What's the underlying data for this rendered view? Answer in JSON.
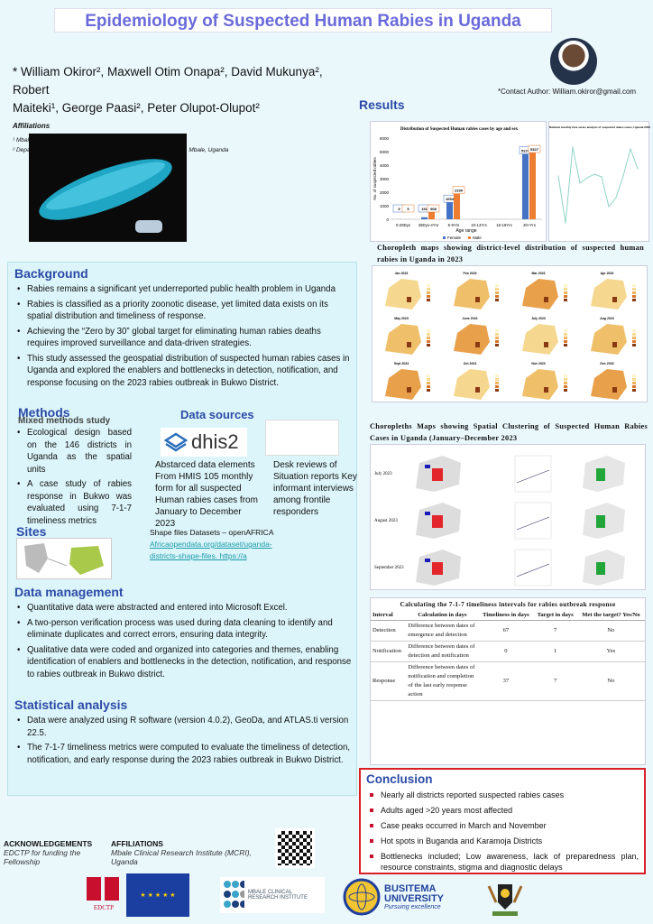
{
  "title": "Epidemiology of Suspected Human Rabies in Uganda",
  "authors": {
    "line1": "* William Okiror², Maxwell Otim Onapa², David Mukunya², Robert",
    "line2": "Maiteki¹, George Paasi², Peter Olupot-Olupot²",
    "affiliations_heading": "Affiliations",
    "affil1": "¹ Mbale Regional Referral Hospital, Mbale, Uganda",
    "affil2": "² Department of community and Public Health, Busitema University, Mbale, Uganda"
  },
  "contact": "*Contact Author: William.okiror@gmail.com",
  "background": {
    "heading": "Background",
    "items": [
      "Rabies remains a significant yet underreported public health problem in Uganda",
      "Rabies  is classified as a priority zoonotic disease, yet limited data exists on its spatial distribution and timeliness of response.",
      "Achieving the “Zero by 30” global target for eliminating human rabies deaths requires improved surveillance and data-driven strategies.",
      "This study assessed the geospatial distribution of suspected human rabies cases in Uganda and explored the enablers and bottlenecks in detection, notification, and response focusing on the 2023 rabies outbreak in Bukwo District."
    ]
  },
  "methods": {
    "heading": "Methods",
    "subheading": "Mixed methods study",
    "items": [
      "Ecological design based on the 146 districts in Uganda as the spatial units",
      "A case study of rabies response in Bukwo was evaluated using 7-1-7 timeliness metrics"
    ]
  },
  "data_sources": {
    "heading": "Data sources",
    "dhis2_logo": "dhis2",
    "text1": "Abstarced data elements From HMIS  105 monthly form   for all suspected Human rabies cases from January to December 2023",
    "text2": "Desk reviews of Situation reports Key informant interviews among frontile responders",
    "shapefiles_label": "Shape files Datasets – openAFRICA",
    "shapefiles_link": "Africaopendata.org/dataset/uganda-districts-shape-files.  https://a"
  },
  "sites": {
    "heading": "Sites"
  },
  "data_management": {
    "heading": "Data management",
    "items": [
      "Quantitative data were abstracted and entered into Microsoft Excel.",
      "A two-person verification process was used during data cleaning to identify and eliminate duplicates and correct errors, ensuring data integrity.",
      "Qualitative data were coded and organized into categories and themes, enabling identification of enablers and bottlenecks in the detection, notification, and response to rabies outbreak in Bukwo district."
    ]
  },
  "statistical_analysis": {
    "heading": "Statistical analysis",
    "items": [
      "Data were analyzed  using R software (version 4.0.2), GeoDa, and ATLAS.ti version 22.5.",
      "The 7-1-7 timeliness metrics were computed to evaluate the timeliness of detection, notification, and early response during the 2023 rabies outbreak in Bukwo District."
    ]
  },
  "results": {
    "heading": "Results",
    "choropleth_caption": "Choropleth maps showing district-level distribution of suspected human rabies in Uganda in 2023",
    "choropleth_months": [
      "Jan 2023",
      "Feb 2023",
      "Mar 2023",
      "Apr 2023",
      "May 2023",
      "June 2023",
      "July 2023",
      "Aug 2023",
      "Sept 2023",
      "Oct 2023",
      "Nov 2023",
      "Dec 2023"
    ],
    "cluster_caption": "Choropleths Maps showing Spatial Clustering of Suspected Human Rabies Cases in Uganda (January–December 2023",
    "cluster_rows": [
      "July  2023",
      "August 2023",
      "September 2023"
    ],
    "table": {
      "caption": "Calculating the 7-1-7 timeliness intervals for rabies outbreak response",
      "headers": [
        "Interval",
        "Calculation in days",
        "Timeliness in days",
        "Target in days",
        "Met the target? Yes/No"
      ],
      "rows": [
        [
          "Detection",
          "Difference between dates of emergence and detection",
          "67",
          "7",
          "No"
        ],
        [
          "Notification",
          "Difference between dates of detection and notification",
          "0",
          "1",
          "Yes"
        ],
        [
          "Response",
          "Difference between dates of notification and completion of the last early response action",
          "37",
          "7",
          "No"
        ]
      ]
    }
  },
  "chart_data": [
    {
      "type": "bar",
      "title": "Distribution of Suspected Human rabies cases by age and sex",
      "xlabel": "Age range",
      "ylabel": "No. of suspected rabies",
      "categories": [
        "0-28Dys",
        "29Dys-4Yrs",
        "5-9Yrs",
        "10-14Yrs",
        "15-19Yrs",
        "20+Yrs"
      ],
      "ylim": [
        0,
        6000
      ],
      "yticks": [
        0,
        1000,
        2000,
        3000,
        4000,
        5000,
        6000
      ],
      "legend": "bottom",
      "series": [
        {
          "name": "Female",
          "color": "#4472c4",
          "values": [
            5,
            151,
            1654,
            null,
            null,
            5227
          ]
        },
        {
          "name": "Male",
          "color": "#ed7d31",
          "values": [
            5,
            908,
            2290,
            null,
            null,
            5327
          ]
        }
      ]
    },
    {
      "type": "line",
      "title": "National monthly time series analysis of suspected rabies cases, Uganda 2023",
      "color": "#8fd3c7",
      "x": [
        1,
        2,
        3,
        4,
        5,
        6,
        7,
        8,
        9,
        10,
        11,
        12
      ],
      "values": [
        560,
        300,
        720,
        520,
        550,
        570,
        555,
        390,
        440,
        560,
        710,
        600
      ]
    }
  ],
  "conclusion": {
    "heading": "Conclusion",
    "items": [
      "Nearly all districts reported suspected rabies cases",
      "Adults aged >20 years  most affected",
      "Case peaks  occurred in March and November",
      "Hot spots in Buganda and Karamoja Districts",
      "Bottlenecks included; Low awareness, lack of preparedness plan, resource constraints, stigma and diagnostic delays"
    ]
  },
  "acknowledgements": {
    "heading": "ACKNOWLEDGEMENTS",
    "text": "EDCTP for funding the Fellowship"
  },
  "affiliations_footer": {
    "heading": "AFFILIATIONS",
    "text": "Mbale Clinical Research Institute (MCRI), Uganda"
  },
  "logos": {
    "edctp": "EDCTP",
    "mcri": "MBALE CLINICAL RESEARCH INSTITUTE",
    "busitema_name": "BUSITEMA UNIVERSITY",
    "busitema_motto": "Pursuing excellence"
  }
}
